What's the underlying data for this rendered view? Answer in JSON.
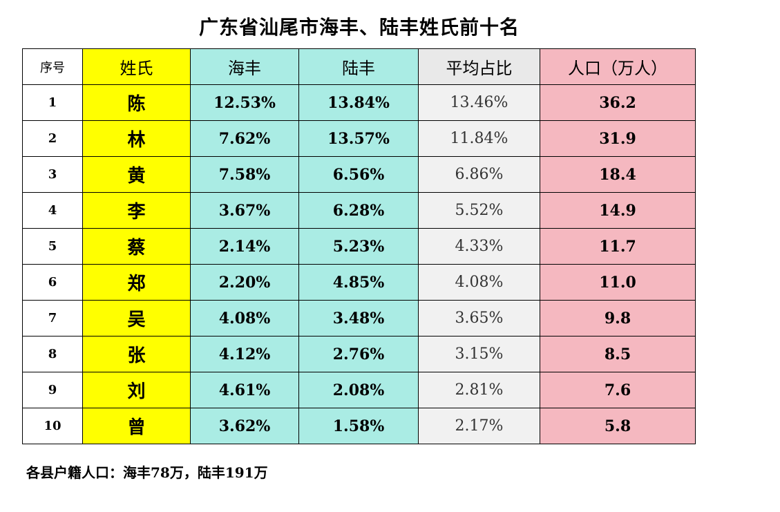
{
  "title": "广东省汕尾市海丰、陆丰姓氏前十名",
  "headers": {
    "seq": "序号",
    "surname": "姓氏",
    "haifeng": "海丰",
    "lufeng": "陆丰",
    "average": "平均占比",
    "population": "人口（万人）"
  },
  "rows": [
    {
      "seq": "1",
      "surname": "陈",
      "haifeng": "12.53%",
      "lufeng": "13.84%",
      "average": "13.46%",
      "population": "36.2"
    },
    {
      "seq": "2",
      "surname": "林",
      "haifeng": "7.62%",
      "lufeng": "13.57%",
      "average": "11.84%",
      "population": "31.9"
    },
    {
      "seq": "3",
      "surname": "黄",
      "haifeng": "7.58%",
      "lufeng": "6.56%",
      "average": "6.86%",
      "population": "18.4"
    },
    {
      "seq": "4",
      "surname": "李",
      "haifeng": "3.67%",
      "lufeng": "6.28%",
      "average": "5.52%",
      "population": "14.9"
    },
    {
      "seq": "5",
      "surname": "蔡",
      "haifeng": "2.14%",
      "lufeng": "5.23%",
      "average": "4.33%",
      "population": "11.7"
    },
    {
      "seq": "6",
      "surname": "郑",
      "haifeng": "2.20%",
      "lufeng": "4.85%",
      "average": "4.08%",
      "population": "11.0"
    },
    {
      "seq": "7",
      "surname": "吴",
      "haifeng": "4.08%",
      "lufeng": "3.48%",
      "average": "3.65%",
      "population": "9.8"
    },
    {
      "seq": "8",
      "surname": "张",
      "haifeng": "4.12%",
      "lufeng": "2.76%",
      "average": "3.15%",
      "population": "8.5"
    },
    {
      "seq": "9",
      "surname": "刘",
      "haifeng": "4.61%",
      "lufeng": "2.08%",
      "average": "2.81%",
      "population": "7.6"
    },
    {
      "seq": "10",
      "surname": "曾",
      "haifeng": "3.62%",
      "lufeng": "1.58%",
      "average": "2.17%",
      "population": "5.8"
    }
  ],
  "footnote": "各县户籍人口：海丰78万，陆丰191万",
  "colors": {
    "surname_column": "#ffff00",
    "county_columns": "#aaece4",
    "average_column": "#f1f1f1",
    "population_column": "#f5b8c0"
  }
}
